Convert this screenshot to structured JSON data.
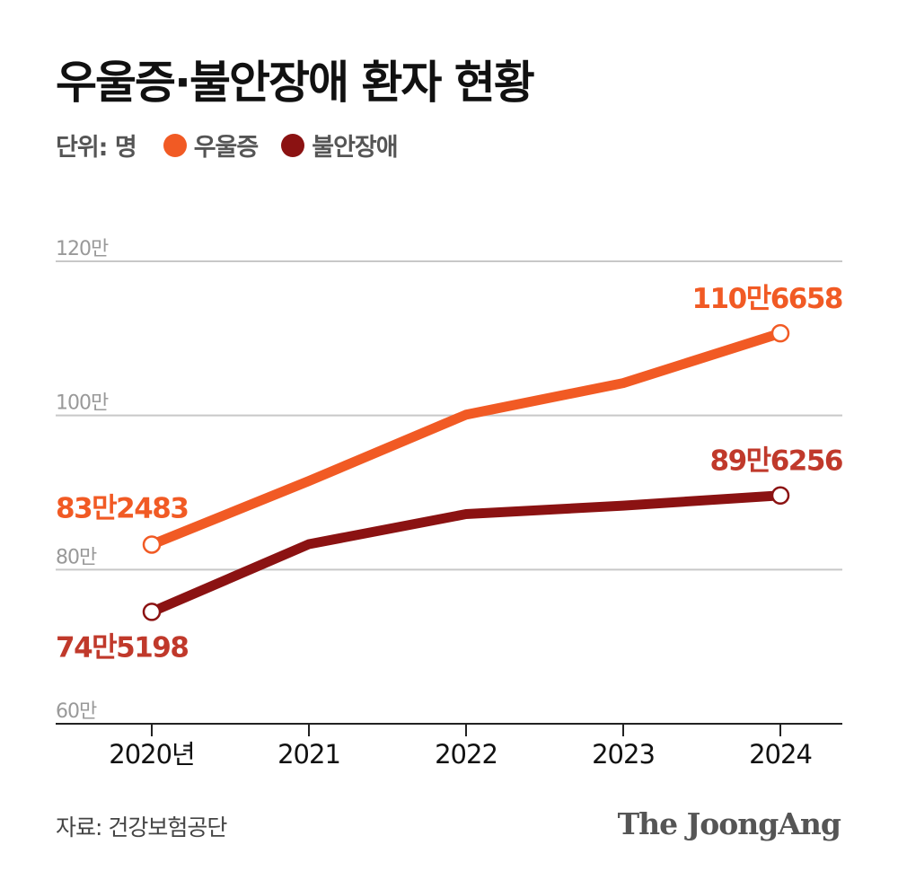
{
  "header": {
    "title": "우울증·불안장애 환자 현황",
    "unit": "단위: 명"
  },
  "legend": [
    {
      "label": "우울증",
      "color": "#f15a24"
    },
    {
      "label": "불안장애",
      "color": "#8b1212"
    }
  ],
  "footer": {
    "source": "자료: 건강보험공단",
    "brand": "The JoongAng"
  },
  "chart_data": {
    "type": "line",
    "x": [
      "2020년",
      "2021",
      "2022",
      "2023",
      "2024"
    ],
    "ylim": [
      60,
      120
    ],
    "yticks": [
      {
        "value": 60,
        "label": "60만"
      },
      {
        "value": 80,
        "label": "80만"
      },
      {
        "value": 100,
        "label": "100만"
      },
      {
        "value": 120,
        "label": "120만"
      }
    ],
    "series": [
      {
        "name": "우울증",
        "color": "#f15a24",
        "values": [
          83.2483,
          91.5,
          100.1,
          104.2,
          110.6658
        ],
        "labels": [
          "83만2483",
          "",
          "",
          "",
          "110만6658"
        ]
      },
      {
        "name": "불안장애",
        "color": "#8b1212",
        "values": [
          74.5198,
          83.3,
          87.2,
          88.3,
          89.6256
        ],
        "labels": [
          "74만5198",
          "",
          "",
          "",
          "89만6256"
        ]
      }
    ],
    "grid": true
  }
}
